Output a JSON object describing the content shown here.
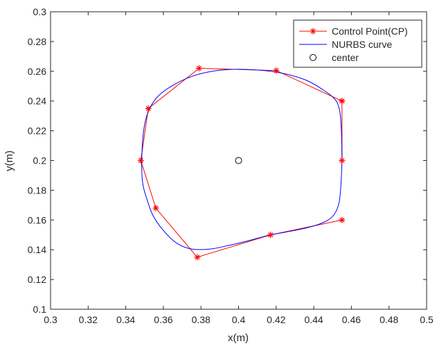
{
  "chart_data": {
    "type": "line",
    "title": "",
    "xlabel": "x(m)",
    "ylabel": "y(m)",
    "xlim": [
      0.3,
      0.5
    ],
    "ylim": [
      0.1,
      0.3
    ],
    "xticks": [
      0.3,
      0.32,
      0.34,
      0.36,
      0.38,
      0.4,
      0.42,
      0.44,
      0.46,
      0.48,
      0.5
    ],
    "yticks": [
      0.1,
      0.12,
      0.14,
      0.16,
      0.18,
      0.2,
      0.22,
      0.24,
      0.26,
      0.28,
      0.3
    ],
    "xtick_labels": [
      "0.3",
      "0.32",
      "0.34",
      "0.36",
      "0.38",
      "0.4",
      "0.42",
      "0.44",
      "0.46",
      "0.48",
      "0.5"
    ],
    "ytick_labels": [
      "0.1",
      "0.12",
      "0.14",
      "0.16",
      "0.18",
      "0.2",
      "0.22",
      "0.24",
      "0.26",
      "0.28",
      "0.3"
    ],
    "grid": false,
    "legend_position": "top-right",
    "series": [
      {
        "name": "Control Point(CP)",
        "color": "#ff0000",
        "marker": "asterisk",
        "x": [
          0.455,
          0.455,
          0.455,
          0.42,
          0.379,
          0.352,
          0.348,
          0.356,
          0.378,
          0.417,
          0.455
        ],
        "y": [
          0.2,
          0.24,
          0.24,
          0.2605,
          0.262,
          0.235,
          0.2,
          0.168,
          0.135,
          0.15,
          0.16
        ]
      },
      {
        "name": "NURBS curve",
        "color": "#0000ff",
        "marker": "none",
        "x": [
          0.455,
          0.4548,
          0.4543,
          0.4533,
          0.451,
          0.445,
          0.435,
          0.42,
          0.405,
          0.395,
          0.385,
          0.375,
          0.365,
          0.357,
          0.352,
          0.3495,
          0.3485,
          0.349,
          0.351,
          0.3545,
          0.36,
          0.367,
          0.375,
          0.385,
          0.395,
          0.405,
          0.417,
          0.43,
          0.44,
          0.447,
          0.451,
          0.4535,
          0.4545,
          0.455
        ],
        "y": [
          0.2,
          0.215,
          0.228,
          0.236,
          0.2415,
          0.2475,
          0.2545,
          0.2595,
          0.2612,
          0.2612,
          0.2598,
          0.2565,
          0.2505,
          0.243,
          0.233,
          0.22,
          0.2,
          0.185,
          0.175,
          0.163,
          0.153,
          0.1445,
          0.1405,
          0.1405,
          0.143,
          0.146,
          0.15,
          0.153,
          0.156,
          0.1595,
          0.164,
          0.172,
          0.185,
          0.2
        ]
      },
      {
        "name": "center",
        "color": "#000000",
        "marker": "circle-open",
        "x": [
          0.4
        ],
        "y": [
          0.2
        ]
      }
    ]
  }
}
